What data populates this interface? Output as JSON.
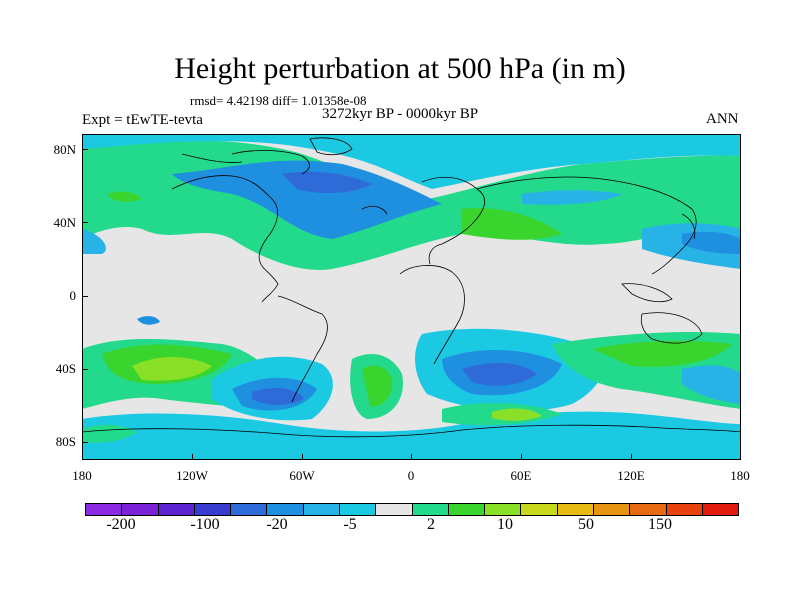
{
  "title": "Height perturbation at 500 hPa (in m)",
  "stats": "rmsd= 4.42198 diff= 1.01358e-08",
  "period": "3272kyr BP - 0000kyr BP",
  "experiment": "Expt = tEwTE-tevta",
  "season": "ANN",
  "axes": {
    "lat_labels": [
      "80N",
      "40N",
      "0",
      "40S",
      "80S"
    ],
    "lon_labels": [
      "180",
      "120W",
      "60W",
      "0",
      "60E",
      "120E",
      "180"
    ]
  },
  "colorbar": {
    "colors": [
      "#8a2be2",
      "#7a22d8",
      "#5b22d0",
      "#3a3ccf",
      "#2e6ad8",
      "#1f8fe0",
      "#27b3e6",
      "#1cc9e3",
      "#e6e6e6",
      "#23d98c",
      "#3ad42e",
      "#8ae027",
      "#c8d81d",
      "#e6bc14",
      "#e69512",
      "#e86a10",
      "#e8420f",
      "#e01a0e"
    ],
    "labels": [
      "-200",
      "-100",
      "-20",
      "-5",
      "2",
      "10",
      "50",
      "150"
    ]
  },
  "map_colors": {
    "neutral": "#e6e6e6",
    "light_green": "#23d98c",
    "green": "#3ad42e",
    "yellow_green": "#8ae027",
    "yellow": "#c8d81d",
    "cyan": "#1cc9e3",
    "light_blue": "#27b3e6",
    "blue": "#1f8fe0",
    "deep_blue": "#2e6ad8",
    "darker_blue": "#3a3ccf"
  }
}
